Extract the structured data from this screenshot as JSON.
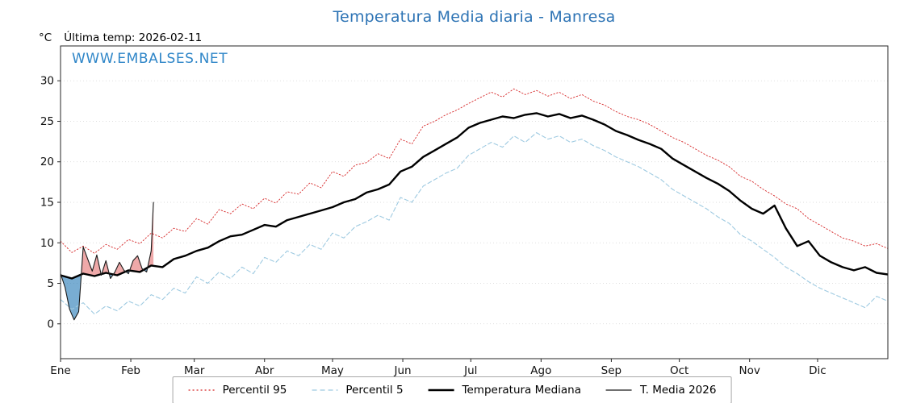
{
  "page": {
    "title": "Temperatura Media diaria - Manresa"
  },
  "header": {
    "y_unit_label": "°C",
    "ultima_temp_label": "Última temp: 2026-02-11",
    "watermark": "WWW.EMBALSES.NET"
  },
  "chart_data": {
    "type": "line",
    "title": "Temperatura Media diaria - Manresa",
    "xlabel": "",
    "ylabel": "°C",
    "grid": "horizontal",
    "legend_position": "bottom",
    "xlim": [
      0,
      365
    ],
    "ylim": [
      -4.3,
      34.3
    ],
    "yticks": [
      0,
      5,
      10,
      15,
      20,
      25,
      30
    ],
    "xticks": [
      {
        "day": 0,
        "label": "Ene"
      },
      {
        "day": 31,
        "label": "Feb"
      },
      {
        "day": 59,
        "label": "Mar"
      },
      {
        "day": 90,
        "label": "Abr"
      },
      {
        "day": 120,
        "label": "May"
      },
      {
        "day": 151,
        "label": "Jun"
      },
      {
        "day": 181,
        "label": "Jul"
      },
      {
        "day": 212,
        "label": "Ago"
      },
      {
        "day": 243,
        "label": "Sep"
      },
      {
        "day": 273,
        "label": "Oct"
      },
      {
        "day": 304,
        "label": "Nov"
      },
      {
        "day": 334,
        "label": "Dic"
      }
    ],
    "colors": {
      "title": "#2e74b5",
      "watermark": "#2f86c8",
      "grid": "#d4d4d4",
      "axis": "#262626",
      "fill_above": "rgba(214,39,40,0.40)",
      "fill_below": "rgba(31,119,180,0.60)"
    },
    "fill_between": [
      "T. Media 2026",
      "Temperatura Mediana"
    ],
    "x_days": [
      0,
      5,
      10,
      15,
      20,
      25,
      30,
      35,
      40,
      45,
      50,
      55,
      60,
      65,
      70,
      75,
      80,
      85,
      90,
      95,
      100,
      105,
      110,
      115,
      120,
      125,
      130,
      135,
      140,
      145,
      150,
      155,
      160,
      165,
      170,
      175,
      180,
      185,
      190,
      195,
      200,
      205,
      210,
      215,
      220,
      225,
      230,
      235,
      240,
      245,
      250,
      255,
      260,
      265,
      270,
      275,
      280,
      285,
      290,
      295,
      300,
      305,
      310,
      315,
      320,
      325,
      330,
      335,
      340,
      345,
      350,
      355,
      360,
      365
    ],
    "series": [
      {
        "name": "Percentil 95",
        "color": "#d62728",
        "width": 0.9,
        "dash": "1.5,2.4",
        "legend_dash": "2,3",
        "values": [
          10.2,
          8.8,
          9.6,
          8.7,
          9.8,
          9.2,
          10.4,
          9.9,
          11.2,
          10.6,
          11.8,
          11.4,
          13,
          12.3,
          14.1,
          13.6,
          14.8,
          14.2,
          15.5,
          14.9,
          16.3,
          16,
          17.4,
          16.8,
          18.8,
          18.2,
          19.6,
          19.9,
          21,
          20.4,
          22.8,
          22.2,
          24.4,
          25,
          25.8,
          26.4,
          27.2,
          27.9,
          28.6,
          28,
          29,
          28.3,
          28.8,
          28.1,
          28.6,
          27.8,
          28.3,
          27.5,
          27,
          26.2,
          25.6,
          25.2,
          24.6,
          23.8,
          23,
          22.4,
          21.6,
          20.8,
          20.2,
          19.4,
          18.2,
          17.6,
          16.6,
          15.8,
          14.8,
          14.2,
          13,
          12.2,
          11.4,
          10.6,
          10.2,
          9.6,
          9.9,
          9.3
        ]
      },
      {
        "name": "Percentil 5",
        "color": "#9ecae1",
        "width": 1.1,
        "dash": "5,3.2",
        "legend_dash": "6,4",
        "values": [
          3,
          1.8,
          2.6,
          1.2,
          2.2,
          1.6,
          2.8,
          2.2,
          3.6,
          3,
          4.4,
          3.8,
          5.8,
          5,
          6.4,
          5.6,
          7,
          6.2,
          8.2,
          7.6,
          9,
          8.4,
          9.8,
          9.2,
          11.2,
          10.6,
          12,
          12.6,
          13.4,
          12.8,
          15.6,
          15,
          17,
          17.8,
          18.6,
          19.2,
          20.8,
          21.6,
          22.4,
          21.8,
          23.2,
          22.4,
          23.6,
          22.8,
          23.2,
          22.4,
          22.8,
          22,
          21.4,
          20.6,
          20,
          19.4,
          18.6,
          17.8,
          16.6,
          15.8,
          15,
          14.2,
          13.2,
          12.4,
          11,
          10.2,
          9.2,
          8.2,
          7,
          6.2,
          5.2,
          4.4,
          3.8,
          3.2,
          2.6,
          2,
          3.4,
          2.8
        ]
      },
      {
        "name": "Temperatura Mediana",
        "color": "#000000",
        "width": 2.4,
        "dash": "",
        "legend_dash": "",
        "values": [
          6,
          5.6,
          6.2,
          5.9,
          6.3,
          6,
          6.6,
          6.4,
          7.2,
          7,
          8,
          8.4,
          9,
          9.4,
          10.2,
          10.8,
          11,
          11.6,
          12.2,
          12,
          12.8,
          13.2,
          13.6,
          14,
          14.4,
          15,
          15.4,
          16.2,
          16.6,
          17.2,
          18.8,
          19.4,
          20.6,
          21.4,
          22.2,
          23,
          24.2,
          24.8,
          25.2,
          25.6,
          25.4,
          25.8,
          26,
          25.6,
          25.9,
          25.4,
          25.7,
          25.2,
          24.6,
          23.8,
          23.3,
          22.7,
          22.2,
          21.6,
          20.4,
          19.6,
          18.8,
          18,
          17.3,
          16.4,
          15.2,
          14.2,
          13.6,
          14.6,
          11.8,
          9.6,
          10.2,
          8.4,
          7.6,
          7,
          6.6,
          7,
          6.3,
          6.1
        ]
      },
      {
        "name": "T. Media 2026",
        "color": "#1a1a1a",
        "width": 1.1,
        "dash": "",
        "legend_dash": "",
        "x_days": [
          0,
          2,
          4,
          6,
          8,
          10,
          12,
          14,
          16,
          18,
          20,
          22,
          24,
          26,
          28,
          30,
          32,
          34,
          36,
          38,
          40,
          41
        ],
        "values": [
          6.2,
          4.5,
          1.8,
          0.5,
          1.5,
          9.5,
          8,
          6.5,
          8.5,
          6,
          7.8,
          5.6,
          6.4,
          7.6,
          6.6,
          6.2,
          7.8,
          8.4,
          6.8,
          6.4,
          9,
          15
        ]
      }
    ]
  }
}
